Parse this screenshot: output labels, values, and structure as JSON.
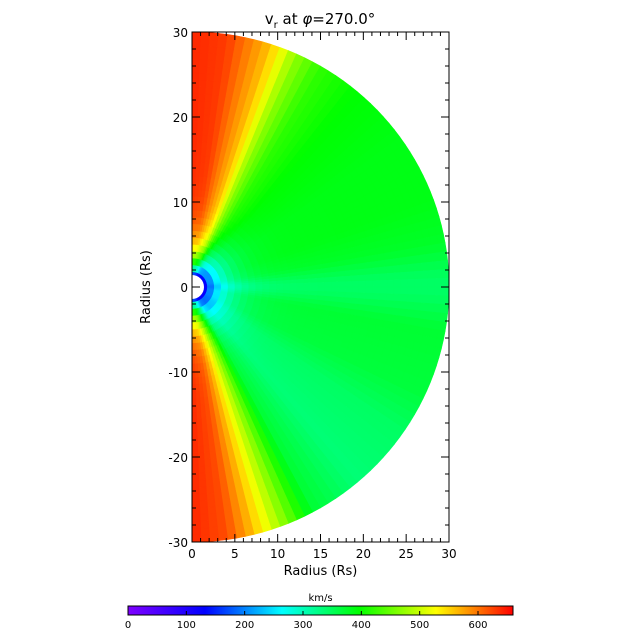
{
  "chart_data": {
    "type": "heatmap",
    "title_parts": {
      "prefix": "v",
      "subscript": "r",
      "middle": " at ",
      "symbol": "φ",
      "suffix": "=270.0°"
    },
    "xlabel": "Radius (Rs)",
    "ylabel": "Radius (Rs)",
    "xlim": [
      0,
      30
    ],
    "ylim": [
      -30,
      30
    ],
    "x_ticks": [
      0,
      5,
      10,
      15,
      20,
      25,
      30
    ],
    "y_ticks": [
      -30,
      -20,
      -10,
      0,
      10,
      20,
      30
    ],
    "grid": false,
    "inner_boundary_radius_rs": 1,
    "colorbar": {
      "label": "km/s",
      "range": [
        0,
        660
      ],
      "ticks": [
        0,
        100,
        200,
        300,
        400,
        500,
        600
      ],
      "colors": [
        "#7f00ff",
        "#0000ff",
        "#00ffff",
        "#00ff00",
        "#ffff00",
        "#ff0000"
      ]
    },
    "field": {
      "description_units": "km/s",
      "polar_angle_deg_from_north_to_speed": [
        [
          0,
          640
        ],
        [
          8,
          630
        ],
        [
          18,
          560
        ],
        [
          24,
          470
        ],
        [
          30,
          420
        ],
        [
          40,
          395
        ],
        [
          55,
          385
        ],
        [
          70,
          385
        ],
        [
          80,
          375
        ],
        [
          88,
          345
        ],
        [
          92,
          345
        ],
        [
          100,
          370
        ],
        [
          115,
          365
        ],
        [
          125,
          345
        ],
        [
          140,
          335
        ],
        [
          152,
          370
        ],
        [
          160,
          480
        ],
        [
          166,
          560
        ],
        [
          172,
          620
        ],
        [
          180,
          640
        ]
      ],
      "near_sun_slow_speed": 80
    }
  }
}
